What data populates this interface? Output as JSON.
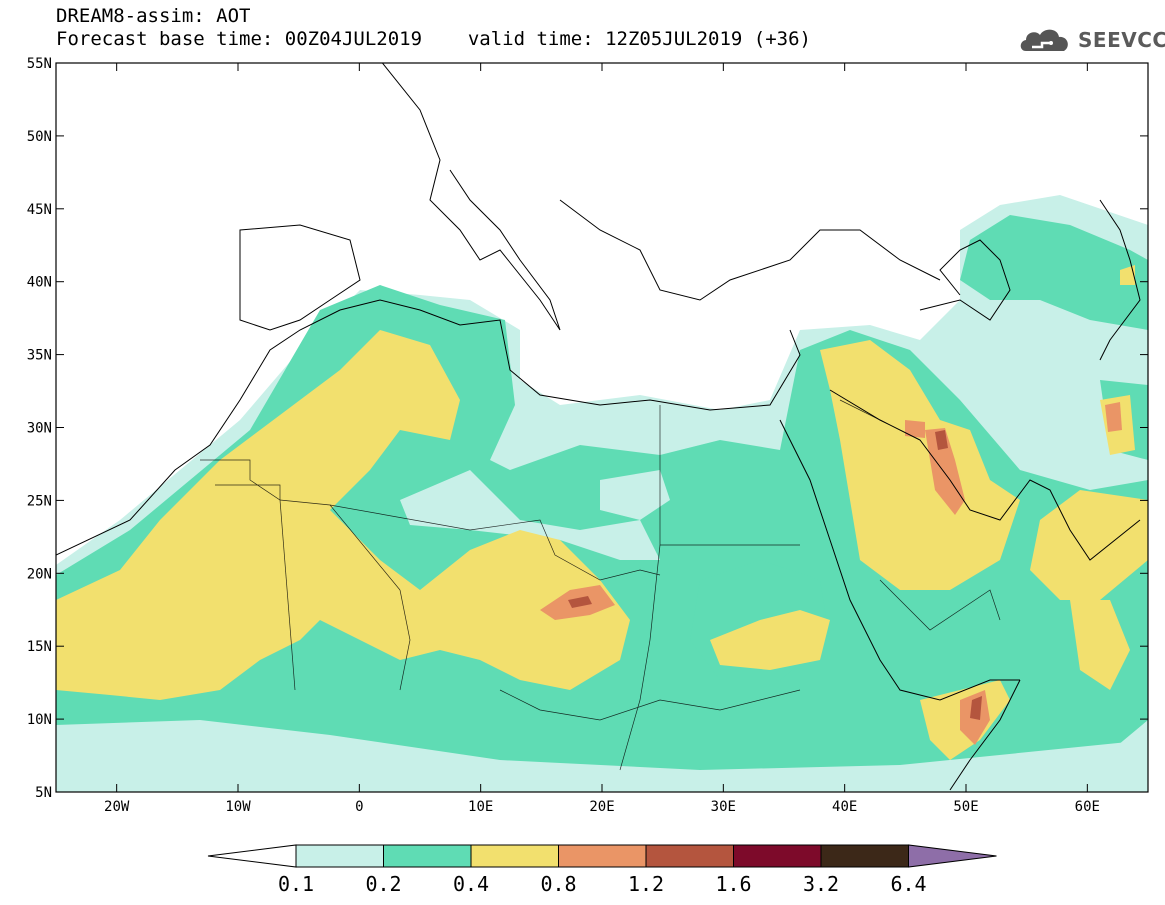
{
  "title": {
    "line1": "DREAM8-assim: AOT",
    "line2_base": "Forecast base time: 00Z04JUL2019",
    "line2_valid": "valid time: 12Z05JUL2019 (+36)"
  },
  "logo": {
    "text": "SEEVCCC",
    "icon": "cloud-logo-icon"
  },
  "map": {
    "projection": "lat-lon",
    "lon_range": [
      -25,
      65
    ],
    "lat_range": [
      5,
      55
    ],
    "lat_ticks": [
      "5N",
      "10N",
      "15N",
      "20N",
      "25N",
      "30N",
      "35N",
      "40N",
      "45N",
      "50N",
      "55N"
    ],
    "lon_ticks": [
      "20W",
      "10W",
      "0",
      "10E",
      "20E",
      "30E",
      "40E",
      "50E",
      "60E"
    ]
  },
  "colorbar": {
    "labels": [
      "0.1",
      "0.2",
      "0.4",
      "0.8",
      "1.2",
      "1.6",
      "3.2",
      "6.4"
    ],
    "colors": [
      "#ffffff",
      "#c8f0e8",
      "#5fdcb4",
      "#f2e06e",
      "#ea9566",
      "#b4553e",
      "#7d0a2a",
      "#3c2818",
      "#8e6ea8"
    ]
  }
}
